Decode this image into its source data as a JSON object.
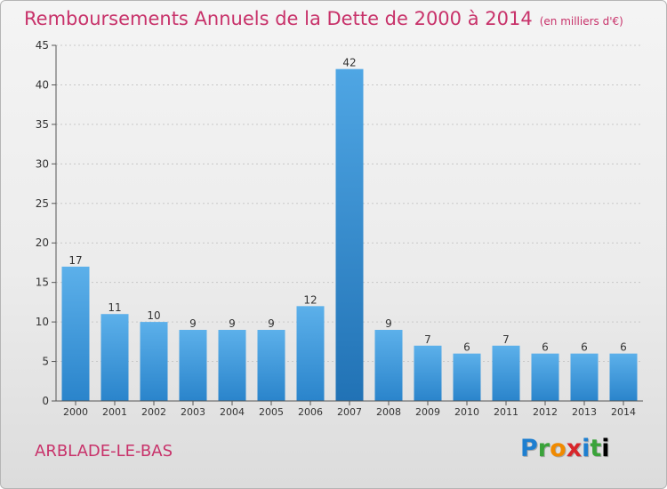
{
  "header": {
    "title": "Remboursements Annuels de la Dette de 2000 à 2014",
    "unit": "(en milliers d'€)"
  },
  "footer": {
    "city": "ARBLADE-LE-BAS",
    "logo_letters": [
      "P",
      "r",
      "o",
      "x",
      "i",
      "t",
      "i"
    ]
  },
  "chart_data": {
    "type": "bar",
    "title": "Remboursements Annuels de la Dette de 2000 à 2014",
    "xlabel": "",
    "ylabel": "",
    "categories": [
      "2000",
      "2001",
      "2002",
      "2003",
      "2004",
      "2005",
      "2006",
      "2007",
      "2008",
      "2009",
      "2010",
      "2011",
      "2012",
      "2013",
      "2014"
    ],
    "values": [
      17,
      11,
      10,
      9,
      9,
      9,
      12,
      42,
      9,
      7,
      6,
      7,
      6,
      6,
      6
    ],
    "ylim": [
      0,
      45
    ],
    "yticks": [
      0,
      5,
      10,
      15,
      20,
      25,
      30,
      35,
      40,
      45
    ],
    "grid": true,
    "colors": {
      "bar_top": "#5aaee8",
      "bar_bottom": "#2c86cc",
      "bar_highlight": "#2475b8",
      "grid": "#c8c8c8",
      "title": "#c8326a"
    }
  }
}
